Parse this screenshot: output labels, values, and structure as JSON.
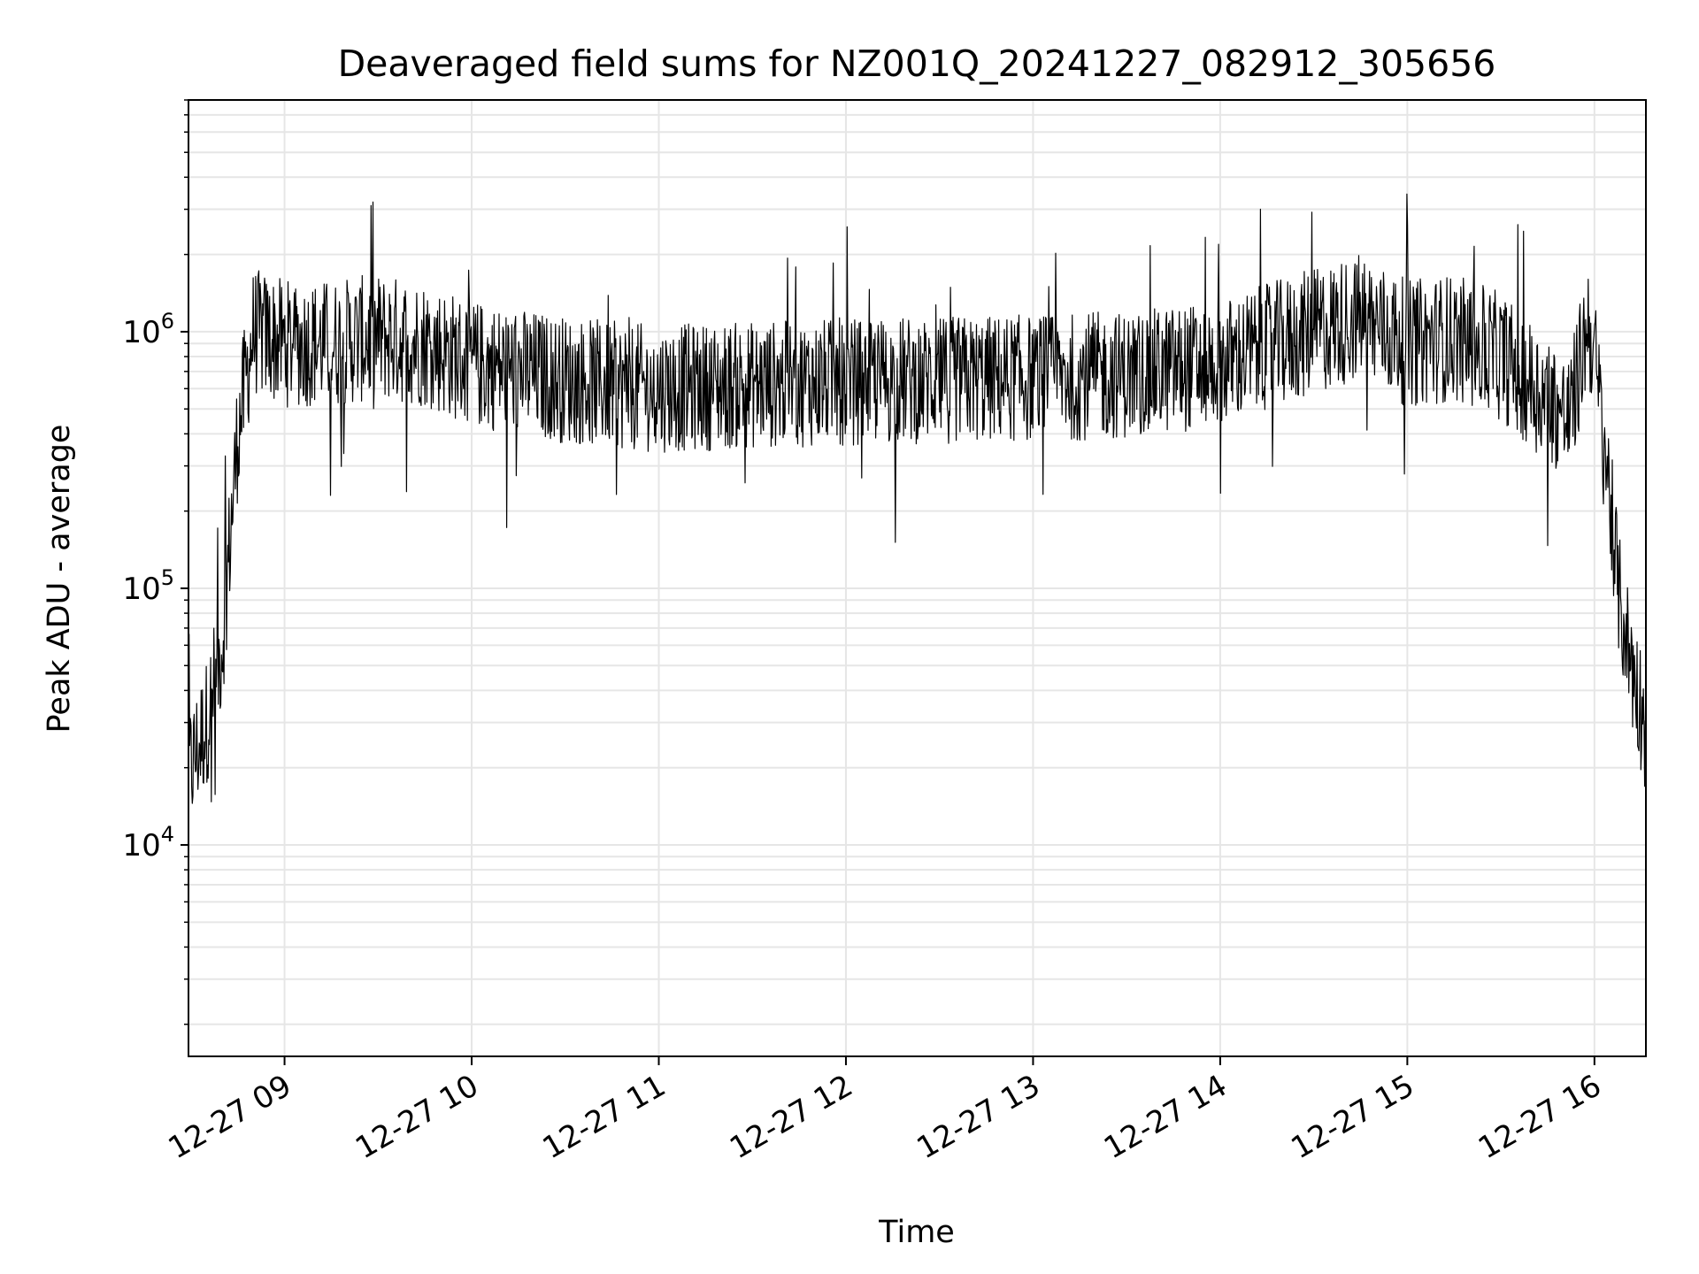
{
  "chart_data": {
    "type": "line",
    "title": "Deaveraged field sums for NZ001Q_20241227_082912_305656",
    "xlabel": "Time",
    "ylabel": "Peak ADU - average",
    "x_range": [
      "12-27 08:29:12",
      "12-27 16:16:30"
    ],
    "x_ticks": [
      "12-27 09",
      "12-27 10",
      "12-27 11",
      "12-27 12",
      "12-27 13",
      "12-27 14",
      "12-27 15",
      "12-27 16"
    ],
    "y_scale": "log",
    "y_range": [
      1500,
      8000000
    ],
    "y_ticks": [
      {
        "base": "10",
        "exp": "4",
        "value": 10000
      },
      {
        "base": "10",
        "exp": "5",
        "value": 100000
      },
      {
        "base": "10",
        "exp": "6",
        "value": 1000000
      }
    ],
    "grid": "major and minor",
    "line_color": "#000000",
    "grid_color": "#e6e6e6",
    "series": [
      {
        "x": [
          "08:30",
          "08:35",
          "08:40",
          "08:45",
          "08:50",
          "09:00",
          "09:15",
          "09:30",
          "09:45",
          "10:00",
          "10:15",
          "10:30",
          "10:45",
          "11:00",
          "11:30",
          "12:00",
          "12:30",
          "13:00",
          "13:30",
          "14:00",
          "14:30",
          "14:45",
          "15:00",
          "15:15",
          "15:30",
          "15:45",
          "15:52",
          "15:58",
          "16:00",
          "16:04",
          "16:08",
          "16:12",
          "16:16"
        ],
        "values": [
          20000,
          30000,
          60000,
          400000,
          1000000,
          900000,
          900000,
          950000,
          900000,
          750000,
          700000,
          650000,
          620000,
          600000,
          620000,
          640000,
          650000,
          660000,
          680000,
          750000,
          1000000,
          1150000,
          900000,
          950000,
          800000,
          550000,
          450000,
          1100000,
          800000,
          300000,
          90000,
          50000,
          30000
        ]
      }
    ]
  }
}
